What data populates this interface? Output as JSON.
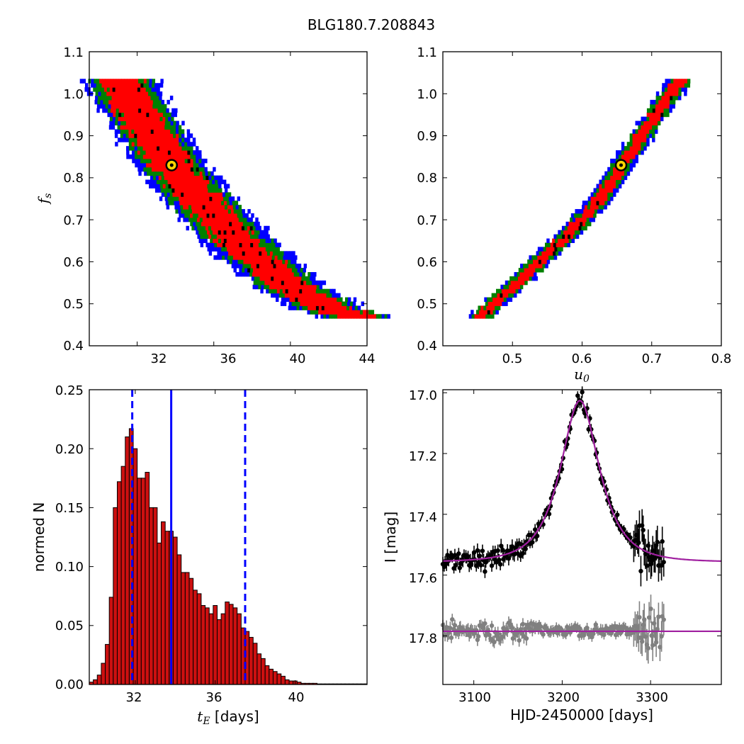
{
  "figure": {
    "title": "BLG180.7.208843"
  },
  "colors": {
    "sigma1": "#ff0000",
    "sigma2": "#008000",
    "sigma3": "#0000ff",
    "samples": "#000000",
    "best_fit_fill": "#ffd700",
    "hist_bar": "#cc1010",
    "marker_line": "#0000ff",
    "model_curve": "#a020a0",
    "data_points": "#000000",
    "residual_points": "#808080"
  },
  "chart_data": [
    {
      "id": "tE_fs",
      "type": "heatmap",
      "title": "",
      "xlabel": "",
      "ylabel_main": "f",
      "ylabel_sub": "s",
      "xlim": [
        29.5,
        44
      ],
      "ylim": [
        0.4,
        1.1
      ],
      "xticks": [
        "32",
        "36",
        "40",
        "44"
      ],
      "yticks": [
        "0.4",
        "0.5",
        "0.6",
        "0.7",
        "0.8",
        "0.9",
        "1.0",
        "1.1"
      ],
      "ridge": [
        [
          31.0,
          1.04
        ],
        [
          32.5,
          0.92
        ],
        [
          34.0,
          0.82
        ],
        [
          36.0,
          0.71
        ],
        [
          38.0,
          0.62
        ],
        [
          40.0,
          0.54
        ],
        [
          42.0,
          0.49
        ],
        [
          43.4,
          0.47
        ]
      ],
      "band_halfwidth_days": {
        "sigma1": 1.1,
        "sigma2": 1.55,
        "sigma3": 1.9
      },
      "best_fit": {
        "x": 33.8,
        "y": 0.83
      }
    },
    {
      "id": "u0_fs",
      "type": "heatmap",
      "title": "",
      "xlabel_main": "u",
      "xlabel_sub": "0",
      "ylabel": "",
      "xlim": [
        0.4,
        0.8
      ],
      "ylim": [
        0.4,
        1.1
      ],
      "xticks": [
        "0.5",
        "0.6",
        "0.7",
        "0.8"
      ],
      "yticks": [
        "0.4",
        "0.5",
        "0.6",
        "0.7",
        "0.8",
        "0.9",
        "1.0",
        "1.1"
      ],
      "ridge": [
        [
          0.455,
          0.47
        ],
        [
          0.52,
          0.57
        ],
        [
          0.58,
          0.665
        ],
        [
          0.62,
          0.735
        ],
        [
          0.66,
          0.835
        ],
        [
          0.7,
          0.935
        ],
        [
          0.745,
          1.04
        ]
      ],
      "band_halfwidth_u0": {
        "sigma1": 0.009,
        "sigma2": 0.014,
        "sigma3": 0.018
      },
      "best_fit": {
        "x": 0.656,
        "y": 0.83
      }
    },
    {
      "id": "tE_hist",
      "type": "bar",
      "title": "",
      "xlabel_main": "t",
      "xlabel_sub": "E",
      "xlabel_unit": " [days]",
      "ylabel": "normed N",
      "xlim": [
        29.7,
        43.6
      ],
      "ylim": [
        0.0,
        0.25
      ],
      "xticks": [
        "32",
        "36",
        "40"
      ],
      "yticks": [
        "0.00",
        "0.05",
        "0.10",
        "0.15",
        "0.20",
        "0.25"
      ],
      "bin_start": 29.7,
      "bin_width": 0.2,
      "values": [
        0.002,
        0.004,
        0.008,
        0.018,
        0.034,
        0.074,
        0.15,
        0.172,
        0.185,
        0.21,
        0.217,
        0.2,
        0.175,
        0.175,
        0.18,
        0.15,
        0.15,
        0.12,
        0.138,
        0.13,
        0.13,
        0.125,
        0.11,
        0.095,
        0.095,
        0.09,
        0.08,
        0.077,
        0.067,
        0.065,
        0.06,
        0.067,
        0.055,
        0.06,
        0.07,
        0.068,
        0.065,
        0.06,
        0.048,
        0.045,
        0.04,
        0.035,
        0.026,
        0.022,
        0.016,
        0.013,
        0.011,
        0.009,
        0.007,
        0.004,
        0.003,
        0.003,
        0.002,
        0.001,
        0.001,
        0.001,
        0.001,
        0.0005,
        0.0005,
        0.0005,
        0.0005,
        0.0005,
        0.0005,
        0.0005,
        0.0005,
        0.0005,
        0.0005,
        0.0005,
        0.0005,
        0.0005
      ],
      "markers": {
        "best": 33.8,
        "low": 31.85,
        "high": 37.5
      }
    },
    {
      "id": "lightcurve",
      "type": "scatter",
      "title": "",
      "xlabel": "HJD-2450000 [days]",
      "ylabel": "I [mag]",
      "xlim": [
        3065,
        3380
      ],
      "ylim": [
        17.96,
        16.99
      ],
      "xticks": [
        "3100",
        "3200",
        "3300"
      ],
      "yticks": [
        "17.0",
        "17.2",
        "17.4",
        "17.6",
        "17.8"
      ],
      "model": {
        "t0": 3220,
        "tE": 33.8,
        "u0": 0.656,
        "fs": 0.83,
        "I_base": 17.557
      },
      "residual_baseline": 17.785,
      "data_range": [
        3065,
        3315
      ]
    }
  ]
}
